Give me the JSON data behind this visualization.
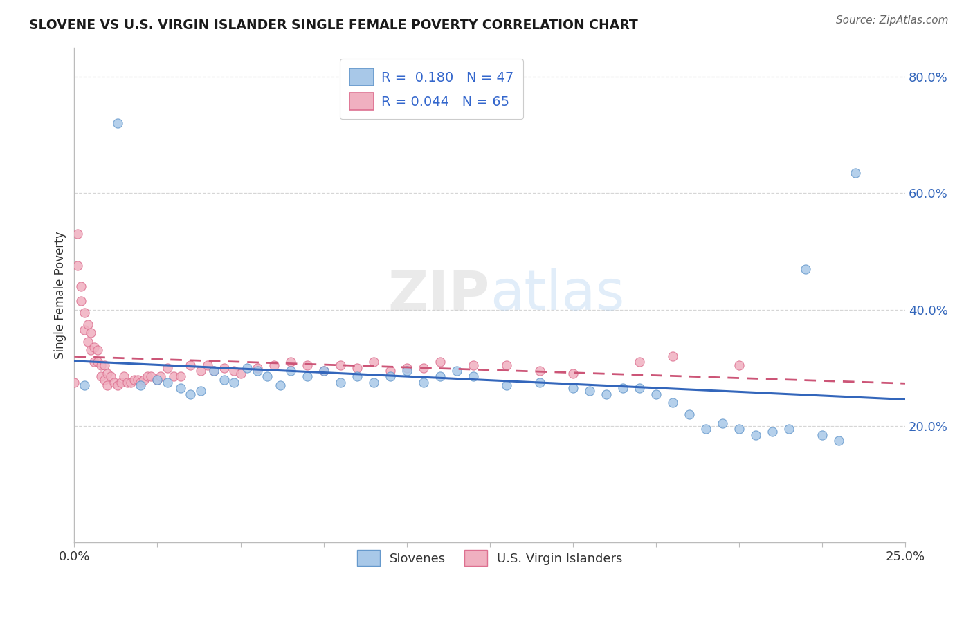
{
  "title": "SLOVENE VS U.S. VIRGIN ISLANDER SINGLE FEMALE POVERTY CORRELATION CHART",
  "source": "Source: ZipAtlas.com",
  "ylabel": "Single Female Poverty",
  "xlim": [
    0.0,
    0.25
  ],
  "ylim": [
    0.0,
    0.85
  ],
  "background_color": "#ffffff",
  "grid_color": "#cccccc",
  "slovenes_color": "#a8c8e8",
  "slovenes_edge_color": "#6699cc",
  "virgin_color": "#f0b0c0",
  "virgin_edge_color": "#dd7090",
  "trend_slovene_color": "#3366bb",
  "trend_virgin_color": "#cc5577",
  "legend_R_slovene": "R =  0.180",
  "legend_N_slovene": "N = 47",
  "legend_R_virgin": "R = 0.044",
  "legend_N_virgin": "N = 65",
  "sl_x": [
    0.003,
    0.013,
    0.02,
    0.025,
    0.028,
    0.032,
    0.035,
    0.038,
    0.042,
    0.045,
    0.048,
    0.052,
    0.055,
    0.058,
    0.062,
    0.065,
    0.07,
    0.075,
    0.08,
    0.085,
    0.09,
    0.095,
    0.1,
    0.105,
    0.11,
    0.115,
    0.12,
    0.13,
    0.14,
    0.15,
    0.155,
    0.16,
    0.165,
    0.17,
    0.175,
    0.18,
    0.185,
    0.19,
    0.195,
    0.2,
    0.205,
    0.21,
    0.215,
    0.22,
    0.225,
    0.23,
    0.235
  ],
  "sl_y": [
    0.27,
    0.72,
    0.27,
    0.28,
    0.275,
    0.265,
    0.255,
    0.26,
    0.295,
    0.28,
    0.275,
    0.3,
    0.295,
    0.285,
    0.27,
    0.295,
    0.285,
    0.295,
    0.275,
    0.285,
    0.275,
    0.285,
    0.295,
    0.275,
    0.285,
    0.295,
    0.285,
    0.27,
    0.275,
    0.265,
    0.26,
    0.255,
    0.265,
    0.265,
    0.255,
    0.24,
    0.22,
    0.195,
    0.205,
    0.195,
    0.185,
    0.19,
    0.195,
    0.47,
    0.185,
    0.175,
    0.635
  ],
  "vi_x": [
    0.0,
    0.001,
    0.001,
    0.002,
    0.002,
    0.003,
    0.003,
    0.004,
    0.004,
    0.005,
    0.005,
    0.006,
    0.006,
    0.007,
    0.007,
    0.008,
    0.008,
    0.009,
    0.009,
    0.01,
    0.01,
    0.011,
    0.012,
    0.013,
    0.014,
    0.015,
    0.016,
    0.017,
    0.018,
    0.019,
    0.02,
    0.021,
    0.022,
    0.023,
    0.025,
    0.026,
    0.028,
    0.03,
    0.032,
    0.035,
    0.038,
    0.04,
    0.042,
    0.045,
    0.048,
    0.05,
    0.055,
    0.06,
    0.065,
    0.07,
    0.075,
    0.08,
    0.085,
    0.09,
    0.095,
    0.1,
    0.105,
    0.11,
    0.12,
    0.13,
    0.14,
    0.15,
    0.17,
    0.18,
    0.2
  ],
  "vi_y": [
    0.275,
    0.53,
    0.475,
    0.44,
    0.415,
    0.395,
    0.365,
    0.375,
    0.345,
    0.36,
    0.33,
    0.335,
    0.31,
    0.33,
    0.31,
    0.305,
    0.285,
    0.305,
    0.28,
    0.29,
    0.27,
    0.285,
    0.275,
    0.27,
    0.275,
    0.285,
    0.275,
    0.275,
    0.28,
    0.28,
    0.275,
    0.28,
    0.285,
    0.285,
    0.28,
    0.285,
    0.3,
    0.285,
    0.285,
    0.305,
    0.295,
    0.305,
    0.295,
    0.3,
    0.295,
    0.29,
    0.3,
    0.305,
    0.31,
    0.305,
    0.295,
    0.305,
    0.3,
    0.31,
    0.295,
    0.3,
    0.3,
    0.31,
    0.305,
    0.305,
    0.295,
    0.29,
    0.31,
    0.32,
    0.305
  ],
  "marker_size": 90
}
